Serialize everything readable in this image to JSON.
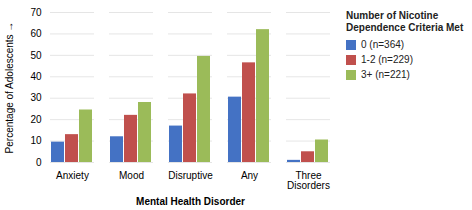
{
  "chart_data": {
    "type": "bar",
    "xlabel": "Mental Health Disorder",
    "ylabel": "Percentage of Adolescents",
    "legend_title": "Number of Nicotine\nDependence Criteria Met",
    "categories": [
      "Anxiety",
      "Mood",
      "Disruptive",
      "Any",
      "Three\nDisorders"
    ],
    "series": [
      {
        "name": "0 (n=364)",
        "color": "#4472C4",
        "values": [
          9.5,
          12,
          17,
          30.5,
          1
        ]
      },
      {
        "name": "1-2 (n=229)",
        "color": "#C0504D",
        "values": [
          13,
          22,
          32,
          46.5,
          5
        ]
      },
      {
        "name": "3+ (n=221)",
        "color": "#9BBB59",
        "values": [
          24.5,
          28,
          49.5,
          62,
          10.5
        ]
      }
    ],
    "ylim": [
      0,
      70
    ],
    "yticks": [
      0,
      10,
      20,
      30,
      40,
      50,
      60,
      70
    ],
    "grid": true,
    "legend": "right"
  }
}
